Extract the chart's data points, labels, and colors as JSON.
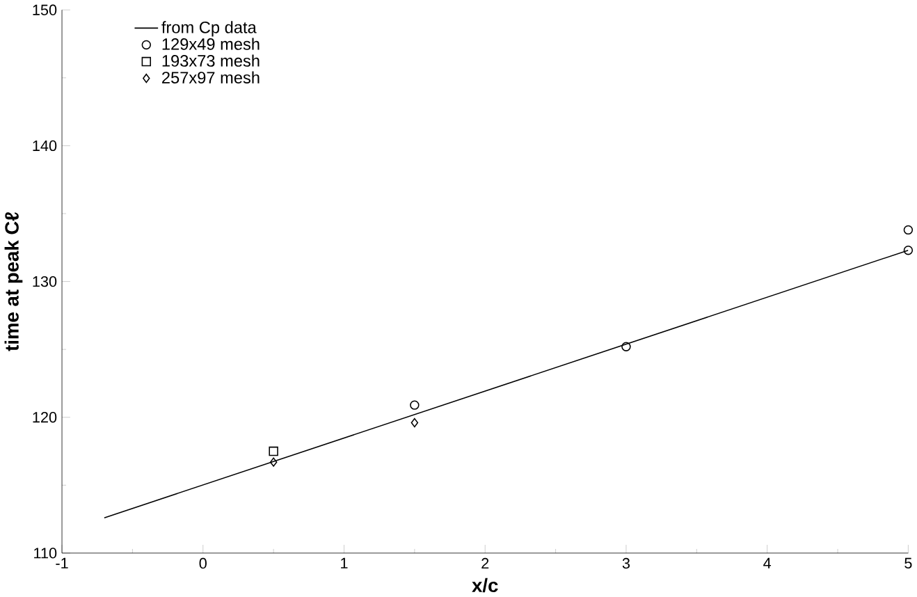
{
  "chart_data": {
    "type": "scatter",
    "xlabel": "x/c",
    "ylabel": "time at peak Cℓ",
    "xlim": [
      -1,
      5
    ],
    "ylim": [
      110,
      150
    ],
    "xticks": [
      -1,
      0,
      1,
      2,
      3,
      4,
      5
    ],
    "yticks": [
      110,
      120,
      130,
      140,
      150
    ],
    "legend": "top left",
    "grid": false,
    "series": [
      {
        "name": "from Cp data",
        "type": "line",
        "marker": "none",
        "line_style": "solid",
        "color": "#000000",
        "x": [
          -0.7,
          5
        ],
        "values": [
          112.6,
          132.3
        ]
      },
      {
        "name": "129x49 mesh",
        "marker": "circle",
        "color": "#000000",
        "x": [
          1.5,
          3,
          5,
          5
        ],
        "values": [
          120.9,
          125.2,
          133.8,
          132.3
        ]
      },
      {
        "name": "193x73 mesh",
        "marker": "square",
        "color": "#000000",
        "x": [
          0.5
        ],
        "values": [
          117.5
        ]
      },
      {
        "name": "257x97 mesh",
        "marker": "diamond",
        "color": "#000000",
        "x": [
          0.5,
          1.5
        ],
        "values": [
          116.7,
          119.6
        ]
      }
    ]
  }
}
